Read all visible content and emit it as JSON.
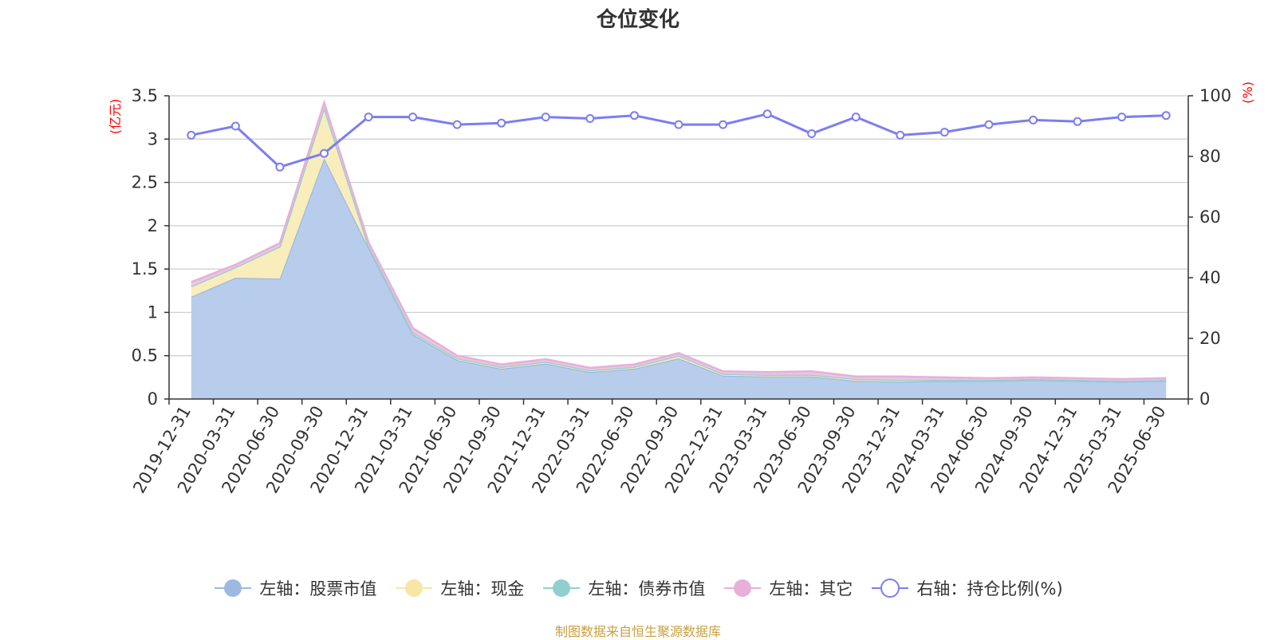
{
  "title": "仓位变化",
  "source_note": "制图数据来自恒生聚源数据库",
  "chart_data": {
    "type": "area",
    "categories": [
      "2019-12-31",
      "2020-03-31",
      "2020-06-30",
      "2020-09-30",
      "2020-12-31",
      "2021-03-31",
      "2021-06-30",
      "2021-09-30",
      "2021-12-31",
      "2022-03-31",
      "2022-06-30",
      "2022-09-30",
      "2022-12-31",
      "2023-03-31",
      "2023-06-30",
      "2023-09-30",
      "2023-12-31",
      "2024-03-31",
      "2024-06-30",
      "2024-09-30",
      "2024-12-31",
      "2025-03-31",
      "2025-06-30"
    ],
    "left_axis": {
      "label": "(亿元)",
      "min": 0,
      "max": 3.5,
      "ticks": [
        "0",
        "0.5",
        "1",
        "1.5",
        "2",
        "2.5",
        "3",
        "3.5"
      ]
    },
    "right_axis": {
      "label": "(%)",
      "min": 0,
      "max": 100,
      "ticks": [
        "0",
        "20",
        "40",
        "60",
        "80",
        "100"
      ]
    },
    "series": [
      {
        "name": "左轴：股票市值",
        "axis": "left",
        "stack": true,
        "color": "#9cb9e0",
        "fill": "#b7cdeb",
        "values": [
          1.18,
          1.4,
          1.39,
          2.78,
          1.75,
          0.75,
          0.45,
          0.35,
          0.41,
          0.31,
          0.35,
          0.47,
          0.27,
          0.26,
          0.26,
          0.21,
          0.2,
          0.21,
          0.21,
          0.22,
          0.21,
          0.2,
          0.21
        ]
      },
      {
        "name": "左轴：现金",
        "axis": "left",
        "stack": true,
        "color": "#f7e6a6",
        "fill": "#f9edbb",
        "values": [
          0.12,
          0.12,
          0.37,
          0.58,
          0.02,
          0.02,
          0.02,
          0.02,
          0.02,
          0.02,
          0.02,
          0.03,
          0.02,
          0.02,
          0.02,
          0.02,
          0.02,
          0.01,
          0.01,
          0.01,
          0.01,
          0.01,
          0.01
        ]
      },
      {
        "name": "左轴：债券市值",
        "axis": "left",
        "stack": true,
        "color": "#8fd0cf",
        "fill": "#9fd9d6",
        "values": [
          0,
          0,
          0,
          0,
          0,
          0,
          0,
          0,
          0,
          0,
          0,
          0,
          0,
          0,
          0,
          0,
          0,
          0,
          0,
          0,
          0,
          0,
          0
        ]
      },
      {
        "name": "左轴：其它",
        "axis": "left",
        "stack": true,
        "color": "#e6b0d8",
        "fill": "#edc4e2",
        "values": [
          0.05,
          0.03,
          0.04,
          0.06,
          0.04,
          0.05,
          0.03,
          0.03,
          0.03,
          0.03,
          0.03,
          0.03,
          0.03,
          0.03,
          0.04,
          0.03,
          0.04,
          0.03,
          0.02,
          0.02,
          0.02,
          0.02,
          0.02
        ]
      },
      {
        "name": "右轴：持仓比例(%)",
        "axis": "right",
        "type": "line",
        "color": "#7b7ef0",
        "values": [
          87,
          90,
          76.5,
          81,
          93,
          93,
          90.5,
          91,
          93,
          92.5,
          93.5,
          90.5,
          90.5,
          94,
          87.5,
          93,
          87,
          88,
          90.5,
          92,
          91.5,
          93,
          93.5
        ]
      }
    ],
    "legend_position": "bottom",
    "grid": true
  }
}
